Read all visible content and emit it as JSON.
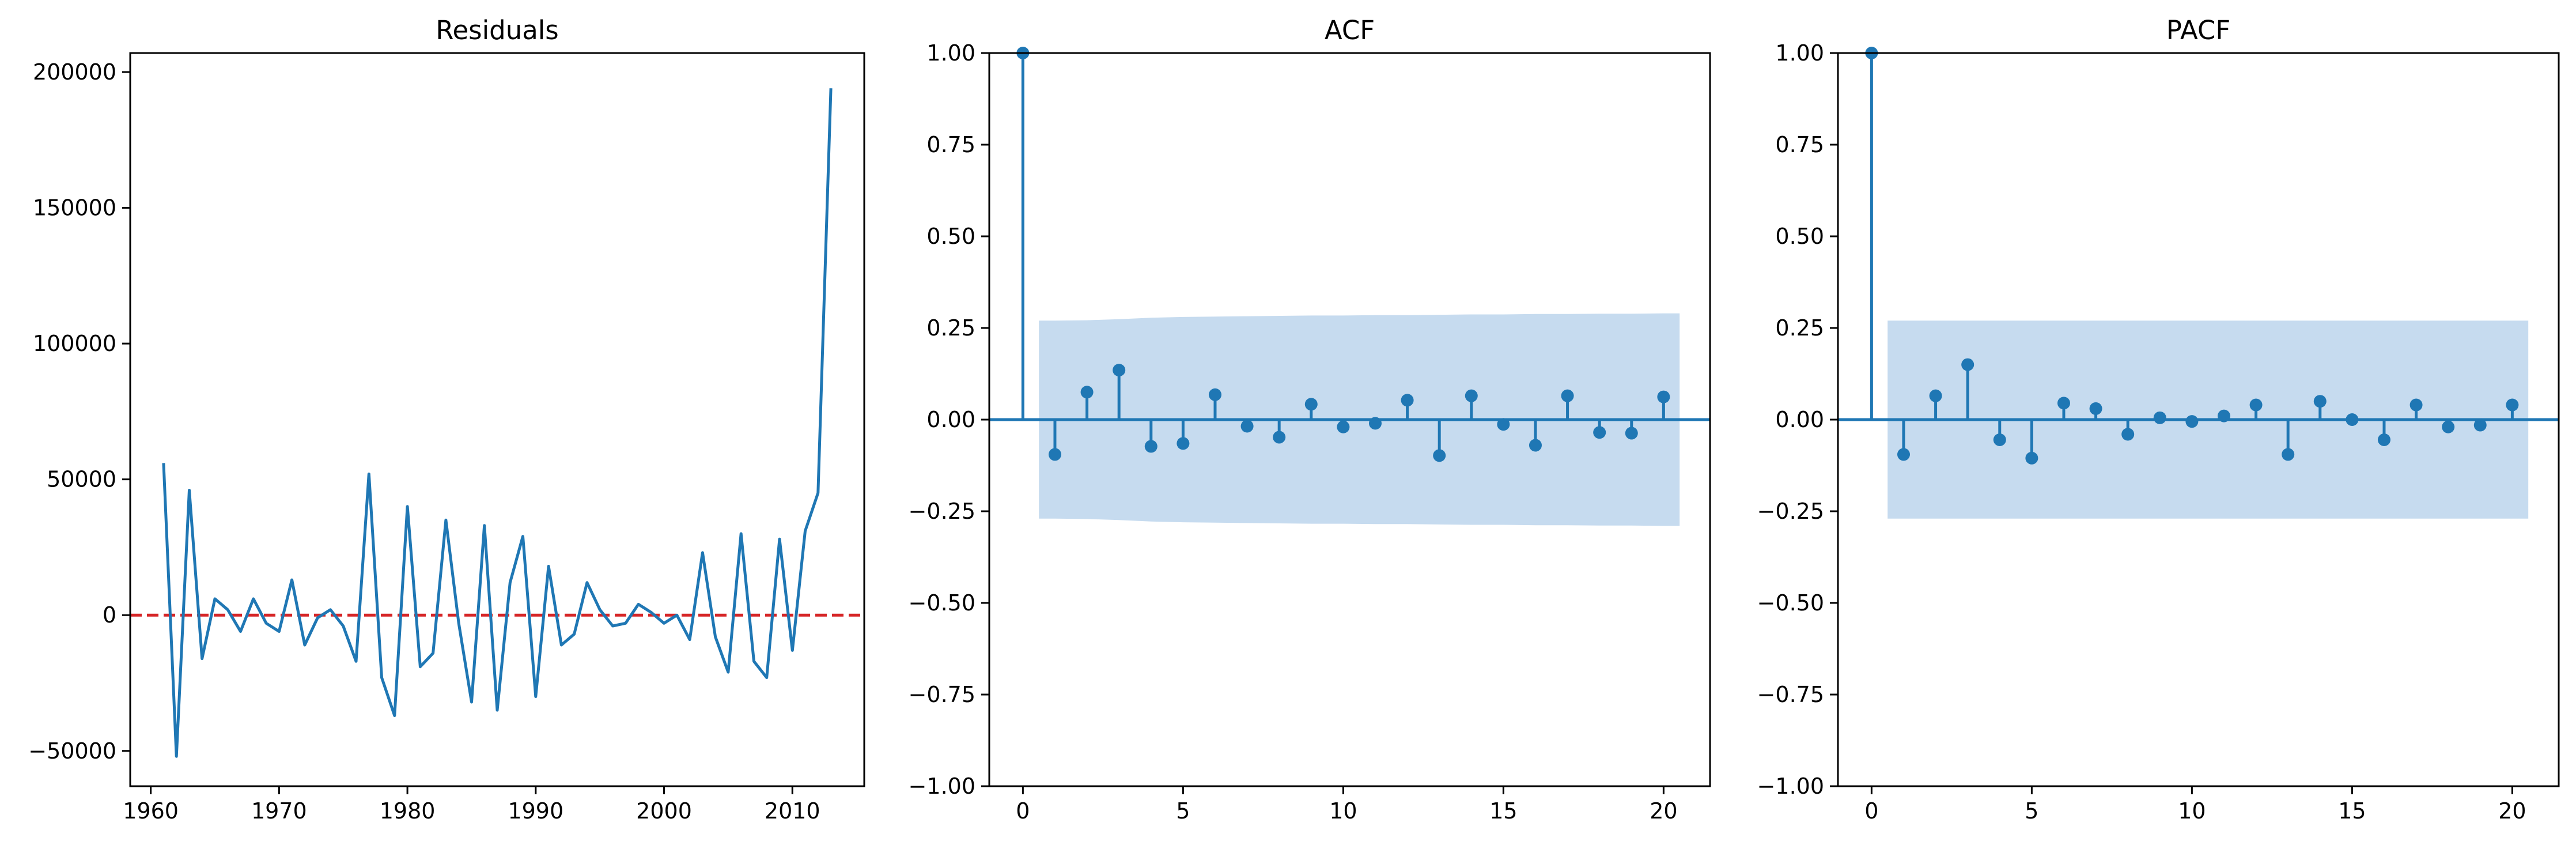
{
  "colors": {
    "line": "#1f77b4",
    "zero_line": "#d62728",
    "band": "#c6dbef",
    "axes": "#000000"
  },
  "chart_data": [
    {
      "type": "line",
      "title": "Residuals",
      "xlabel": "",
      "ylabel": "",
      "xlim": [
        1958.4,
        2015.6
      ],
      "ylim": [
        -63000,
        207000
      ],
      "xticks": [
        1960,
        1970,
        1980,
        1990,
        2000,
        2010
      ],
      "xtick_labels": [
        "1960",
        "1970",
        "1980",
        "1990",
        "2000",
        "2010"
      ],
      "yticks": [
        -50000,
        0,
        50000,
        100000,
        150000,
        200000
      ],
      "ytick_labels": [
        "−50000",
        "0",
        "50000",
        "100000",
        "150000",
        "200000"
      ],
      "grid": false,
      "reference_line": {
        "y": 0,
        "style": "dashed",
        "color": "#d62728"
      },
      "x": [
        1961,
        1962,
        1963,
        1964,
        1965,
        1966,
        1967,
        1968,
        1969,
        1970,
        1971,
        1972,
        1973,
        1974,
        1975,
        1976,
        1977,
        1978,
        1979,
        1980,
        1981,
        1982,
        1983,
        1984,
        1985,
        1986,
        1987,
        1988,
        1989,
        1990,
        1991,
        1992,
        1993,
        1994,
        1995,
        1996,
        1997,
        1998,
        1999,
        2000,
        2001,
        2002,
        2003,
        2004,
        2005,
        2006,
        2007,
        2008,
        2009,
        2010,
        2011,
        2012,
        2013
      ],
      "y": [
        56000,
        -52000,
        46000,
        -16000,
        6000,
        2000,
        -6000,
        6000,
        -3000,
        -6000,
        13000,
        -11000,
        -1000,
        2000,
        -4000,
        -17000,
        52000,
        -23000,
        -37000,
        40000,
        -19000,
        -14000,
        35000,
        -3000,
        -32000,
        33000,
        -35000,
        12000,
        29000,
        -30000,
        18000,
        -11000,
        -7000,
        12000,
        2000,
        -4000,
        -3000,
        4000,
        1000,
        -3000,
        0,
        -9000,
        23000,
        -8000,
        -21000,
        30000,
        -17000,
        -23000,
        28000,
        -13000,
        31000,
        45000,
        194000
      ]
    },
    {
      "type": "stem",
      "title": "ACF",
      "xlabel": "",
      "ylabel": "",
      "xlim": [
        -1.05,
        21.45
      ],
      "ylim": [
        -1.0,
        1.0
      ],
      "xticks": [
        0,
        5,
        10,
        15,
        20
      ],
      "xtick_labels": [
        "0",
        "5",
        "10",
        "15",
        "20"
      ],
      "yticks": [
        -1.0,
        -0.75,
        -0.5,
        -0.25,
        0.0,
        0.25,
        0.5,
        0.75,
        1.0
      ],
      "ytick_labels": [
        "−1.00",
        "−0.75",
        "−0.50",
        "−0.25",
        "0.00",
        "0.25",
        "0.50",
        "0.75",
        "1.00"
      ],
      "grid": false,
      "lags": [
        0,
        1,
        2,
        3,
        4,
        5,
        6,
        7,
        8,
        9,
        10,
        11,
        12,
        13,
        14,
        15,
        16,
        17,
        18,
        19,
        20
      ],
      "values": [
        1.0,
        -0.095,
        0.075,
        0.135,
        -0.073,
        -0.065,
        0.068,
        -0.018,
        -0.048,
        0.042,
        -0.02,
        -0.01,
        0.053,
        -0.098,
        0.065,
        -0.013,
        -0.07,
        0.065,
        -0.035,
        -0.037,
        0.062
      ],
      "confint_lags": [
        0.5,
        1,
        2,
        3,
        4,
        5,
        6,
        7,
        8,
        9,
        10,
        11,
        12,
        13,
        14,
        15,
        16,
        17,
        18,
        19,
        20,
        20.5
      ],
      "confint": [
        0.27,
        0.27,
        0.271,
        0.274,
        0.278,
        0.28,
        0.281,
        0.282,
        0.283,
        0.284,
        0.284,
        0.285,
        0.285,
        0.286,
        0.287,
        0.287,
        0.288,
        0.288,
        0.289,
        0.289,
        0.29,
        0.29
      ]
    },
    {
      "type": "stem",
      "title": "PACF",
      "xlabel": "",
      "ylabel": "",
      "xlim": [
        -1.05,
        21.45
      ],
      "ylim": [
        -1.0,
        1.0
      ],
      "xticks": [
        0,
        5,
        10,
        15,
        20
      ],
      "xtick_labels": [
        "0",
        "5",
        "10",
        "15",
        "20"
      ],
      "yticks": [
        -1.0,
        -0.75,
        -0.5,
        -0.25,
        0.0,
        0.25,
        0.5,
        0.75,
        1.0
      ],
      "ytick_labels": [
        "−1.00",
        "−0.75",
        "−0.50",
        "−0.25",
        "0.00",
        "0.25",
        "0.50",
        "0.75",
        "1.00"
      ],
      "grid": false,
      "lags": [
        0,
        1,
        2,
        3,
        4,
        5,
        6,
        7,
        8,
        9,
        10,
        11,
        12,
        13,
        14,
        15,
        16,
        17,
        18,
        19,
        20
      ],
      "values": [
        1.0,
        -0.095,
        0.065,
        0.15,
        -0.055,
        -0.105,
        0.045,
        0.03,
        -0.04,
        0.005,
        -0.005,
        0.01,
        0.04,
        -0.095,
        0.05,
        0.0,
        -0.055,
        0.04,
        -0.02,
        -0.015,
        0.04
      ],
      "confint_lags": [
        0.5,
        20.5
      ],
      "confint": [
        0.27,
        0.27
      ]
    }
  ]
}
